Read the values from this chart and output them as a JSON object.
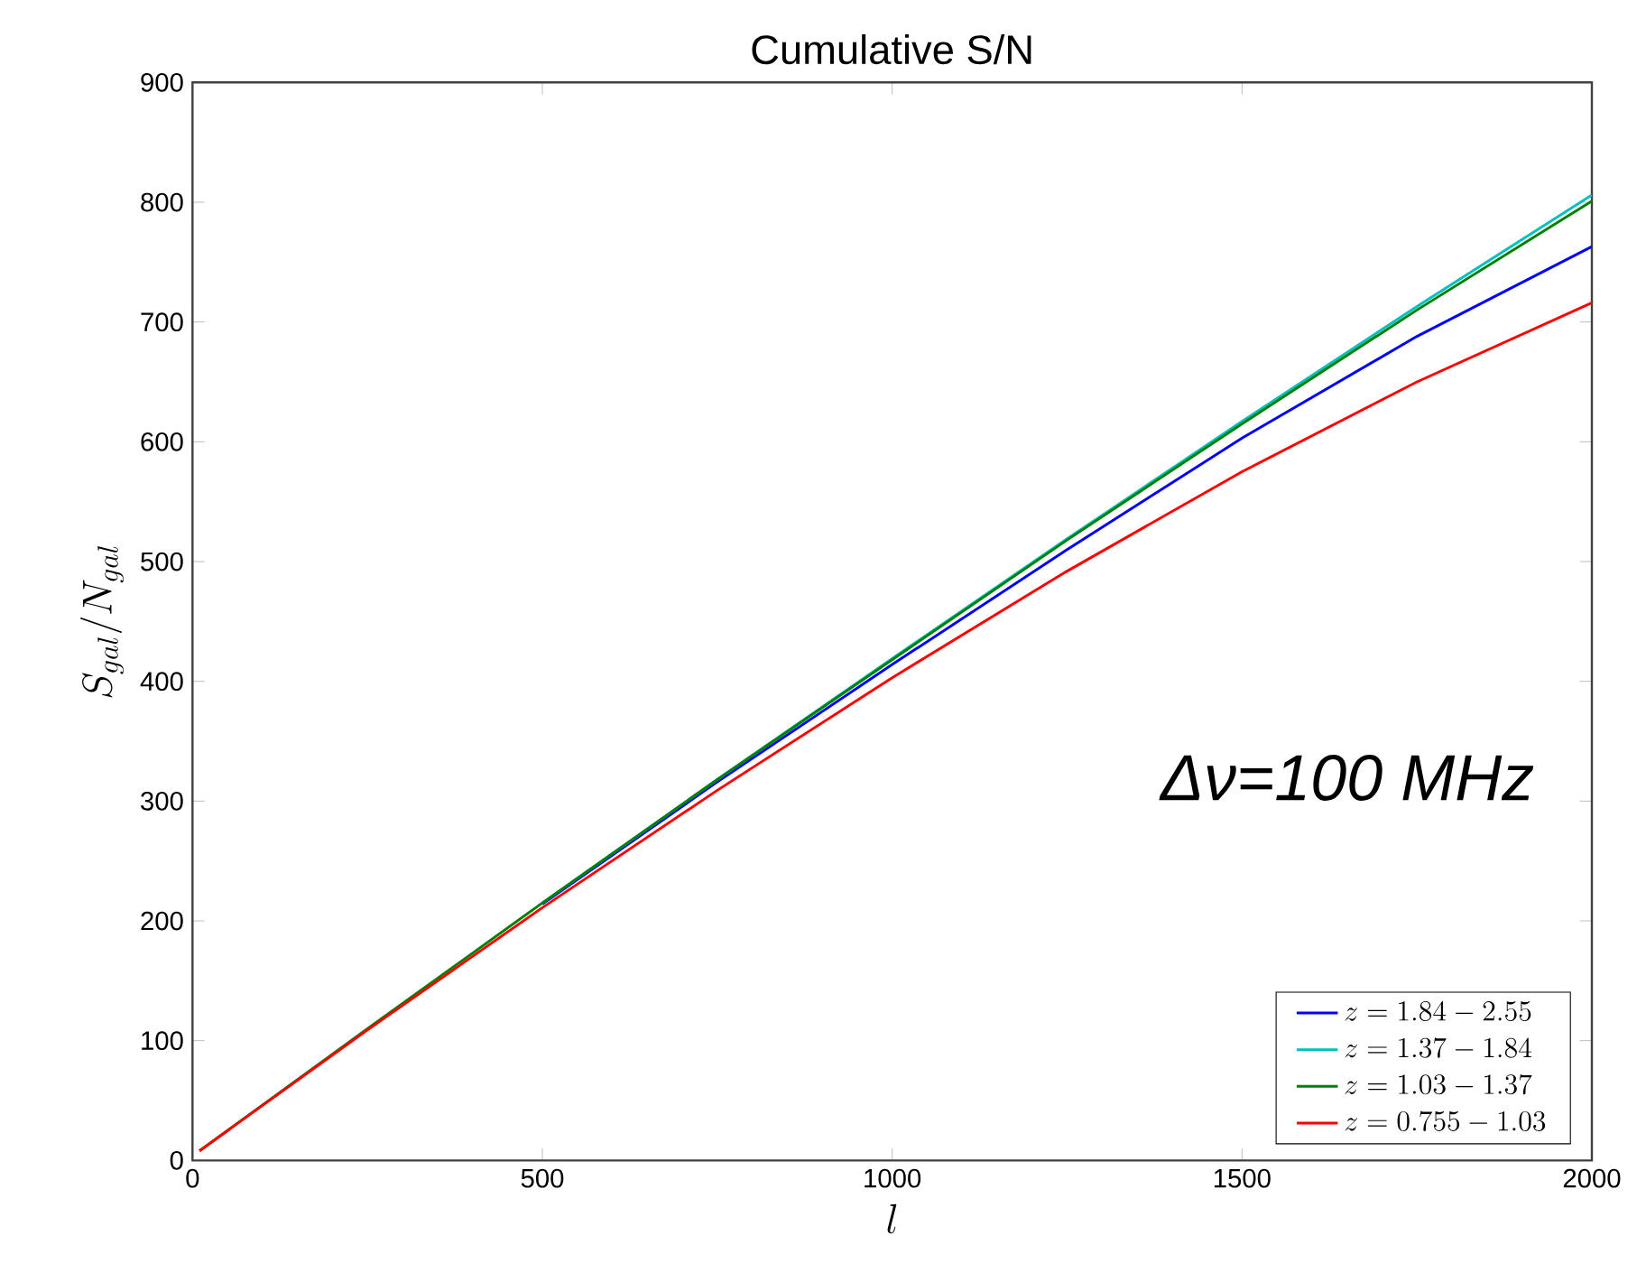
{
  "chart_data": {
    "type": "line",
    "title": "Cumulative S/N",
    "xlabel": "l",
    "ylabel": "S_{gal}/N_{gal}",
    "xlim": [
      0,
      2000
    ],
    "xticks": [
      0,
      500,
      1000,
      1500,
      2000
    ],
    "ylim": [
      0,
      900
    ],
    "yticks": [
      0,
      100,
      200,
      300,
      400,
      500,
      600,
      700,
      800,
      900
    ],
    "x": [
      10,
      250,
      500,
      750,
      1000,
      1250,
      1500,
      1750,
      2000
    ],
    "series": [
      {
        "name": "z=1.84-2.55",
        "color": "#0000ff",
        "values": [
          null,
          null,
          214,
          316,
          414,
          510,
          603,
          688,
          763
        ]
      },
      {
        "name": "z=1.37-1.84",
        "color": "#00bfbf",
        "values": [
          null,
          null,
          215,
          318,
          419,
          519,
          617,
          713,
          806
        ]
      },
      {
        "name": "z=1.03-1.37",
        "color": "#008000",
        "values": [
          8,
          110,
          215,
          318,
          418,
          518,
          615,
          710,
          801
        ]
      },
      {
        "name": "z=0.755-1.03",
        "color": "#ff0000",
        "values": [
          8,
          109,
          211,
          309,
          403,
          492,
          575,
          650,
          716
        ]
      }
    ],
    "annotations": [
      "Δν=100 MHz"
    ],
    "legend": "bottom right",
    "grid": false,
    "marker": "none",
    "line_style": "solid"
  }
}
